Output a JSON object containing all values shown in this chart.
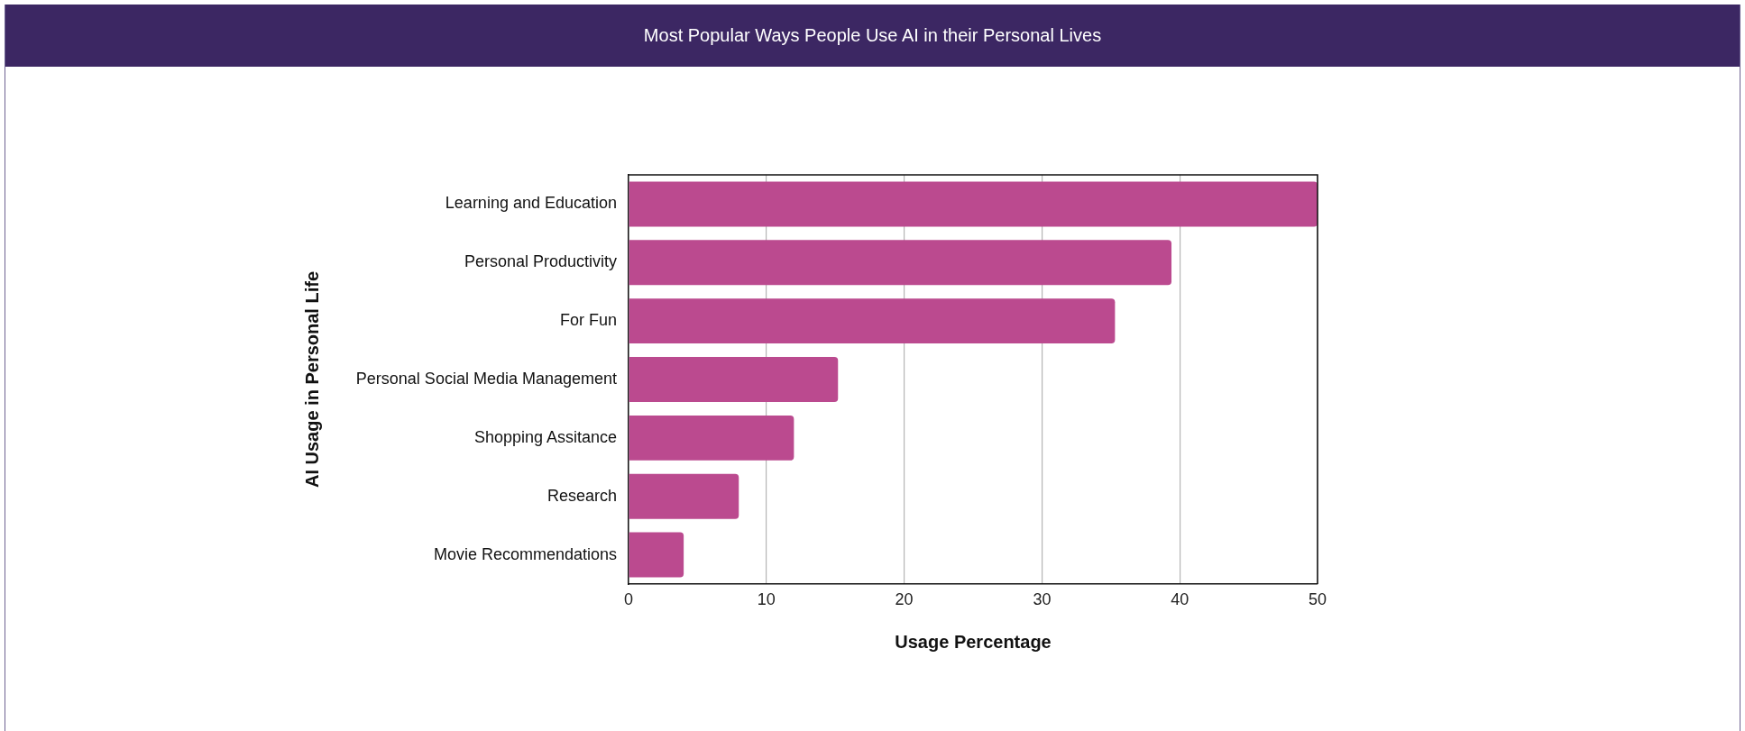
{
  "chart_data": {
    "type": "bar",
    "orientation": "horizontal",
    "title": "Most Popular Ways People Use AI in their Personal Lives",
    "xlabel": "Usage Percentage",
    "ylabel": "AI Usage in Personal Life",
    "categories": [
      "Learning and Education",
      "Personal Productivity",
      "For Fun",
      "Personal Social Media Management",
      "Shopping Assitance",
      "Research",
      "Movie Recommendations"
    ],
    "values": [
      50,
      39.4,
      35.3,
      15.2,
      12,
      8,
      4
    ],
    "color": "#bb4a8f",
    "xlim": [
      0,
      50
    ],
    "xticks": [
      0,
      10,
      20,
      30,
      40,
      50
    ],
    "grid": "x"
  }
}
